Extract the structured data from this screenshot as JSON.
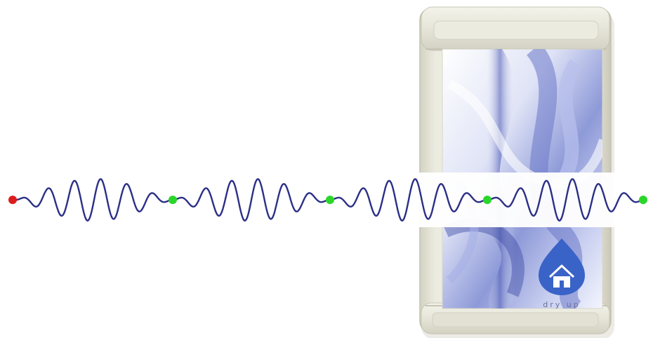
{
  "product": {
    "brand_label": "dry up",
    "logo_icon": "drop-house-icon"
  },
  "waveform": {
    "description_free": true,
    "packets": 4,
    "markers": [
      {
        "color": "#dd1c1c",
        "kind": "start"
      },
      {
        "color": "#2bd62b",
        "kind": "separator"
      },
      {
        "color": "#2bd62b",
        "kind": "separator"
      },
      {
        "color": "#2bd62b",
        "kind": "separator"
      },
      {
        "color": "#2bd62b",
        "kind": "separator"
      }
    ],
    "wave_color": "#2b2f86"
  },
  "colors": {
    "background": "#ffffff",
    "case": "#e9e8dc",
    "panel_blue": "#5f6dc0",
    "logo_blue": "#3a63c8"
  }
}
